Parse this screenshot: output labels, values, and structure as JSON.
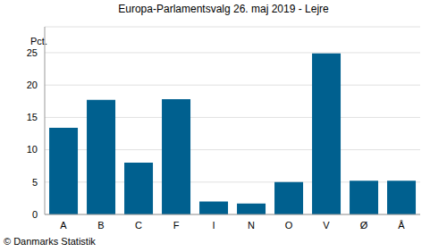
{
  "chart_data": {
    "type": "bar",
    "title": "Europa-Parlamentsvalg 26. maj 2019 - Lejre",
    "y_label": "Pct.",
    "annotations": [
      "© Danmarks Statistik"
    ],
    "categories": [
      "A",
      "B",
      "C",
      "F",
      "I",
      "N",
      "O",
      "V",
      "Ø",
      "Å"
    ],
    "values": [
      13.4,
      17.7,
      8.0,
      17.8,
      2.0,
      1.7,
      5.0,
      24.9,
      5.2,
      5.2
    ],
    "color": "#00608f",
    "ylim": [
      0,
      29
    ],
    "yticks": [
      0,
      5,
      10,
      15,
      20,
      25
    ],
    "grid": true
  }
}
